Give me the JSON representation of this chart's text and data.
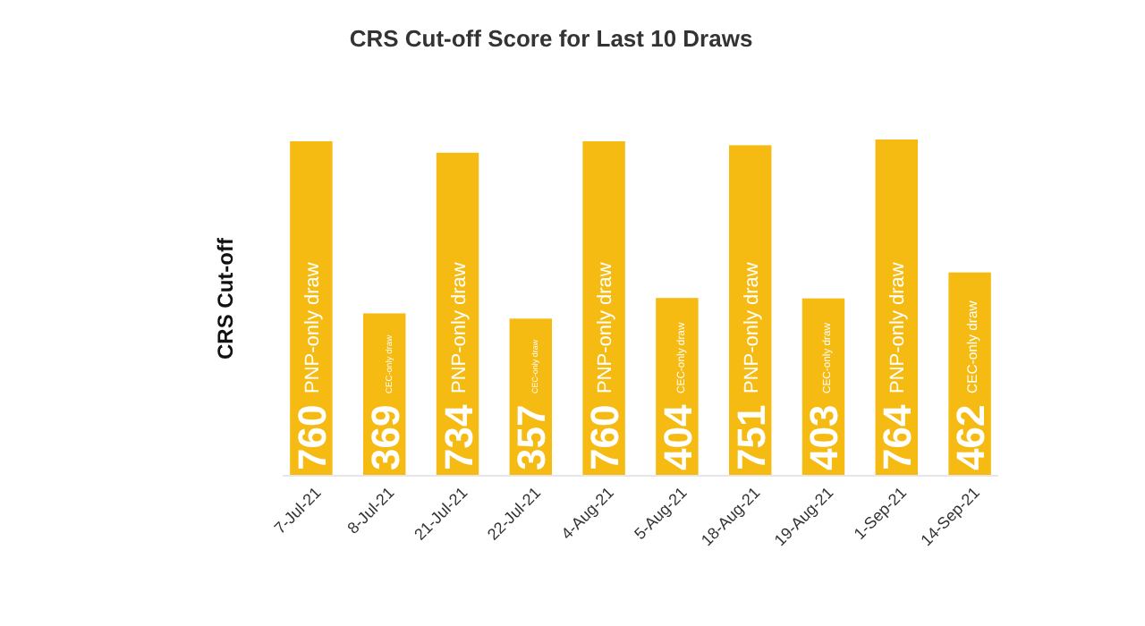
{
  "chart_data": {
    "type": "bar",
    "title": "CRS Cut-off Score for Last 10 Draws",
    "ylabel": "CRS Cut-off",
    "categories": [
      "7-Jul-21",
      "8-Jul-21",
      "21-Jul-21",
      "22-Jul-21",
      "4-Aug-21",
      "5-Aug-21",
      "18-Aug-21",
      "19-Aug-21",
      "1-Sep-21",
      "14-Sep-21"
    ],
    "values": [
      760,
      369,
      734,
      357,
      760,
      404,
      751,
      403,
      764,
      462
    ],
    "color": "#f5bb12",
    "data_labels": true,
    "annotations": [
      {
        "text": "PNP-only draw",
        "x": "7-Jul-21"
      },
      {
        "text": "CEC-only draw",
        "x": "8-Jul-21"
      },
      {
        "text": "PNP-only draw",
        "x": "21-Jul-21"
      },
      {
        "text": "CEC-only draw",
        "x": "22-Jul-21"
      },
      {
        "text": "PNP-only draw",
        "x": "4-Aug-21"
      },
      {
        "text": "CEC-only draw",
        "x": "5-Aug-21"
      },
      {
        "text": "PNP-only draw",
        "x": "18-Aug-21"
      },
      {
        "text": "CEC-only draw",
        "x": "19-Aug-21"
      },
      {
        "text": "PNP-only draw",
        "x": "1-Sep-21"
      },
      {
        "text": "CEC-only draw",
        "x": "14-Sep-21"
      }
    ]
  }
}
